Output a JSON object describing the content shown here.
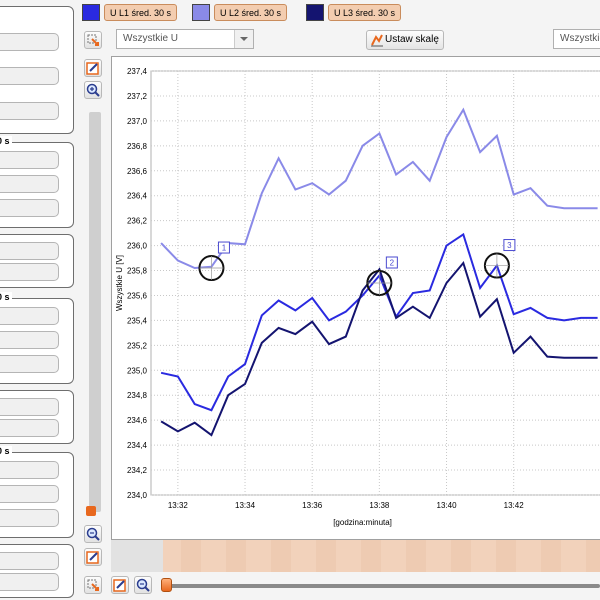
{
  "legend": [
    {
      "label": "U L1 śred. 30 s",
      "color": "#2a2ae0"
    },
    {
      "label": "U L2 śred. 30 s",
      "color": "#8a8ae8"
    },
    {
      "label": "U L3 śred. 30 s",
      "color": "#141470"
    }
  ],
  "toolbar": {
    "voltage_select": "Wszystkie U",
    "scale_button": "Ustaw skalę",
    "right_select": "Wszystkie"
  },
  "left_panel": {
    "group_titles": [
      "0 s",
      "0 s",
      "0 s"
    ]
  },
  "colors": {
    "accent": "#e8681e",
    "timeline": "#f2d2bb"
  },
  "chart_data": {
    "type": "line",
    "ylabel": "Wszystkie U [V]",
    "xlabel": "[godzina:minuta]",
    "x_ticks": [
      "13:32",
      "13:34",
      "13:36",
      "13:38",
      "13:40",
      "13:42"
    ],
    "y_ticks": [
      "234,0",
      "234,2",
      "234,4",
      "234,6",
      "234,8",
      "235,0",
      "235,2",
      "235,4",
      "235,6",
      "235,8",
      "236,0",
      "236,2",
      "236,4",
      "236,6",
      "236,8",
      "237,0",
      "237,2",
      "237,4"
    ],
    "ylim": [
      234.0,
      237.4
    ],
    "xlim_minutes": [
      31.2,
      44.6
    ],
    "grid": true,
    "markers": [
      {
        "label": "1",
        "x": 33.0,
        "y": 235.82
      },
      {
        "label": "2",
        "x": 38.0,
        "y": 235.7
      },
      {
        "label": "3",
        "x": 41.5,
        "y": 235.84
      }
    ],
    "series": [
      {
        "name": "U L2 śred. 30 s",
        "color": "#8a8ae8",
        "x": [
          31.5,
          32.0,
          32.5,
          33.0,
          33.5,
          34.0,
          34.5,
          35.0,
          35.5,
          36.0,
          36.5,
          37.0,
          37.5,
          38.0,
          38.5,
          39.0,
          39.5,
          40.0,
          40.5,
          41.0,
          41.5,
          42.0,
          42.5,
          43.0,
          43.5,
          44.0,
          44.5
        ],
        "values": [
          236.02,
          235.88,
          235.82,
          235.83,
          236.02,
          236.01,
          236.42,
          236.7,
          236.45,
          236.5,
          236.41,
          236.52,
          236.8,
          236.9,
          236.57,
          236.67,
          236.52,
          236.87,
          237.09,
          236.75,
          236.88,
          236.41,
          236.46,
          236.32,
          236.3,
          236.3,
          236.3
        ]
      },
      {
        "name": "U L1 śred. 30 s",
        "color": "#2a2ae0",
        "x": [
          31.5,
          32.0,
          32.5,
          33.0,
          33.5,
          34.0,
          34.5,
          35.0,
          35.5,
          36.0,
          36.5,
          37.0,
          37.5,
          38.0,
          38.5,
          39.0,
          39.5,
          40.0,
          40.5,
          41.0,
          41.5,
          42.0,
          42.5,
          43.0,
          43.5,
          44.0,
          44.5
        ],
        "values": [
          234.98,
          234.95,
          234.73,
          234.68,
          234.95,
          235.05,
          235.44,
          235.56,
          235.48,
          235.58,
          235.4,
          235.47,
          235.6,
          235.76,
          235.43,
          235.62,
          235.64,
          236.0,
          236.09,
          235.66,
          235.84,
          235.45,
          235.5,
          235.42,
          235.4,
          235.42,
          235.42
        ]
      },
      {
        "name": "U L3 śred. 30 s",
        "color": "#141470",
        "x": [
          31.5,
          32.0,
          32.5,
          33.0,
          33.5,
          34.0,
          34.5,
          35.0,
          35.5,
          36.0,
          36.5,
          37.0,
          37.5,
          38.0,
          38.5,
          39.0,
          39.5,
          40.0,
          40.5,
          41.0,
          41.5,
          42.0,
          42.5,
          43.0,
          43.5,
          44.0,
          44.5
        ],
        "values": [
          234.59,
          234.51,
          234.58,
          234.48,
          234.8,
          234.89,
          235.22,
          235.34,
          235.29,
          235.39,
          235.21,
          235.27,
          235.64,
          235.81,
          235.42,
          235.51,
          235.42,
          235.7,
          235.86,
          235.43,
          235.57,
          235.14,
          235.27,
          235.11,
          235.1,
          235.1,
          235.1
        ]
      }
    ]
  }
}
